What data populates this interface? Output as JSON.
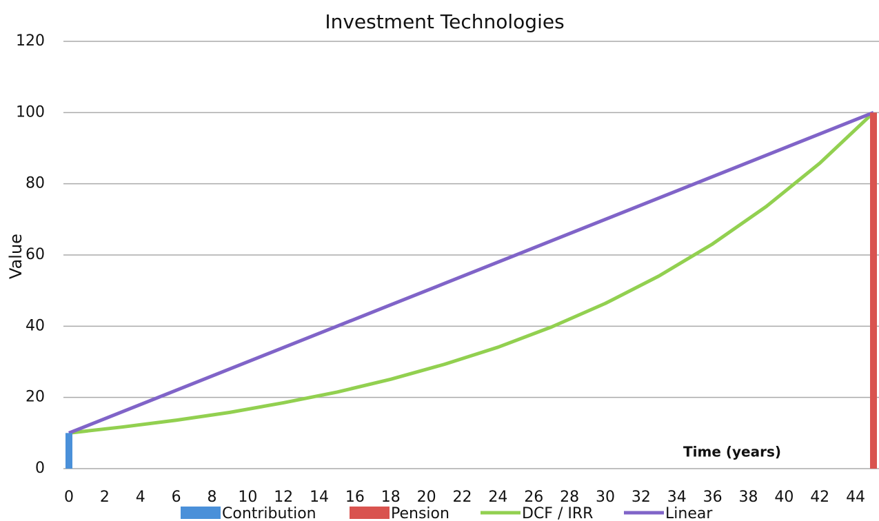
{
  "chart_data": {
    "type": "line",
    "title": "Investment Technologies",
    "y_label": "Value",
    "x_label": "Time (years)",
    "xlim": [
      0,
      45
    ],
    "xticks": [
      0,
      2,
      4,
      6,
      8,
      10,
      12,
      14,
      16,
      18,
      20,
      22,
      24,
      26,
      28,
      30,
      32,
      34,
      36,
      38,
      40,
      42,
      44
    ],
    "ylim": [
      0,
      120
    ],
    "yticks": [
      0,
      20,
      40,
      60,
      80,
      100,
      120
    ],
    "grid": true,
    "legend": "bottom",
    "series": [
      {
        "name": "Contribution",
        "type": "bar",
        "color": "#4a90d9",
        "x": [
          0
        ],
        "values": [
          10
        ]
      },
      {
        "name": "Pension",
        "type": "bar",
        "color": "#d9534f",
        "x": [
          45
        ],
        "values": [
          100
        ]
      },
      {
        "name": "DCF / IRR",
        "type": "line",
        "color": "#92d050",
        "x": [
          0,
          3,
          6,
          9,
          12,
          15,
          18,
          21,
          24,
          27,
          30,
          33,
          36,
          39,
          42,
          45
        ],
        "values": [
          10,
          11.7,
          13.6,
          15.8,
          18.5,
          21.5,
          25.1,
          29.3,
          34.1,
          39.8,
          46.4,
          54.1,
          63.1,
          73.6,
          85.8,
          100
        ]
      },
      {
        "name": "Linear",
        "type": "line",
        "color": "#8064c8",
        "x": [
          0,
          3,
          6,
          9,
          12,
          15,
          18,
          21,
          24,
          27,
          30,
          33,
          36,
          39,
          42,
          45
        ],
        "values": [
          10,
          16,
          22,
          28,
          34,
          40,
          46,
          52,
          58,
          64,
          70,
          76,
          82,
          88,
          94,
          100
        ]
      }
    ]
  }
}
